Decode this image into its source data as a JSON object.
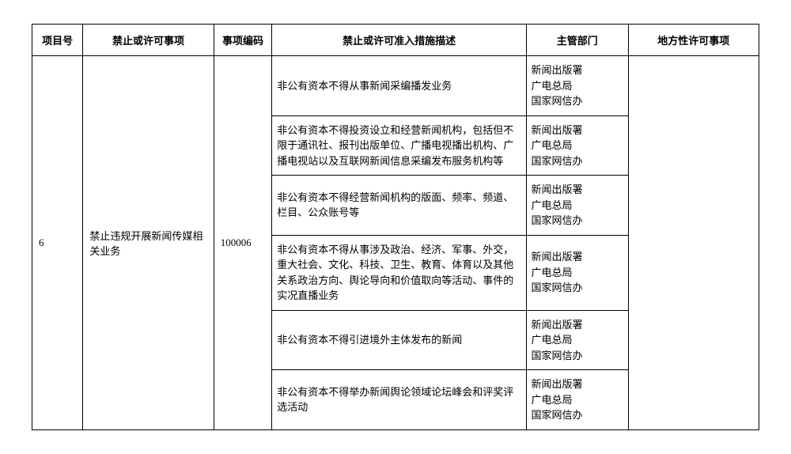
{
  "headers": {
    "project_no": "项目号",
    "matter": "禁止或许可事项",
    "code": "事项编码",
    "desc": "禁止或许可准入措施描述",
    "dept": "主管部门",
    "local": "地方性许可事项"
  },
  "row": {
    "project_no": "6",
    "matter": "禁止违规开展新闻传媒相关业务",
    "code": "100006",
    "local": ""
  },
  "dept_lines": [
    "新闻出版署",
    "广电总局",
    "国家网信办"
  ],
  "sub": [
    {
      "desc": "非公有资本不得从事新闻采编播发业务"
    },
    {
      "desc": "非公有资本不得投资设立和经营新闻机构，包括但不限于通讯社、报刊出版单位、广播电视播出机构、广播电视站以及互联网新闻信息采编发布服务机构等"
    },
    {
      "desc": "非公有资本不得经营新闻机构的版面、频率、频道、栏目、公众账号等"
    },
    {
      "desc": "非公有资本不得从事涉及政治、经济、军事、外交，重大社会、文化、科技、卫生、教育、体育以及其他关系政治方向、舆论导向和价值取向等活动、事件的实况直播业务"
    },
    {
      "desc": "非公有资本不得引进境外主体发布的新闻"
    },
    {
      "desc": "非公有资本不得举办新闻舆论领域论坛峰会和评奖评选活动"
    }
  ],
  "style": {
    "background_color": "#ffffff",
    "border_color": "#000000",
    "text_color": "#000000",
    "font_family": "SimSun",
    "base_fontsize_pt": 10,
    "header_fontweight": "bold",
    "col_widths_pct": {
      "project_no": 7,
      "matter": 18,
      "code": 8,
      "desc": 35,
      "dept": 14,
      "local": 18
    },
    "line_height": 1.5
  }
}
